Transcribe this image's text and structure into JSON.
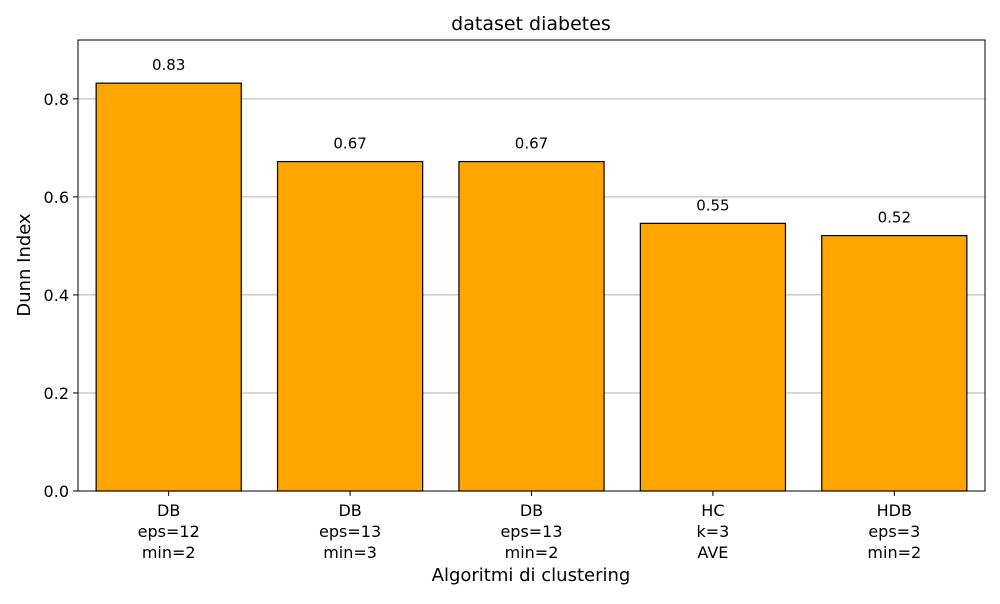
{
  "chart_data": {
    "type": "bar",
    "title": "dataset diabetes",
    "xlabel": "Algoritmi di clustering",
    "ylabel": "Dunn Index",
    "ylim": [
      0,
      0.92
    ],
    "yticks": [
      "0.0",
      "0.2",
      "0.4",
      "0.6",
      "0.8"
    ],
    "ytick_values": [
      0.0,
      0.2,
      0.4,
      0.6,
      0.8
    ],
    "grid": "horizontal",
    "categories": [
      [
        "DB",
        "eps=12",
        "min=2"
      ],
      [
        "DB",
        "eps=13",
        "min=3"
      ],
      [
        "DB",
        "eps=13",
        "min=2"
      ],
      [
        "HC",
        "k=3",
        "AVE"
      ],
      [
        "HDB",
        "eps=3",
        "min=2"
      ]
    ],
    "values": [
      0.832,
      0.672,
      0.672,
      0.546,
      0.521
    ],
    "data_labels": [
      "0.83",
      "0.67",
      "0.67",
      "0.55",
      "0.52"
    ],
    "colors": {
      "bar_fill": "#FFA500",
      "bar_edge": "#000000",
      "grid": "#b0b0b0",
      "axes": "#000000"
    }
  }
}
